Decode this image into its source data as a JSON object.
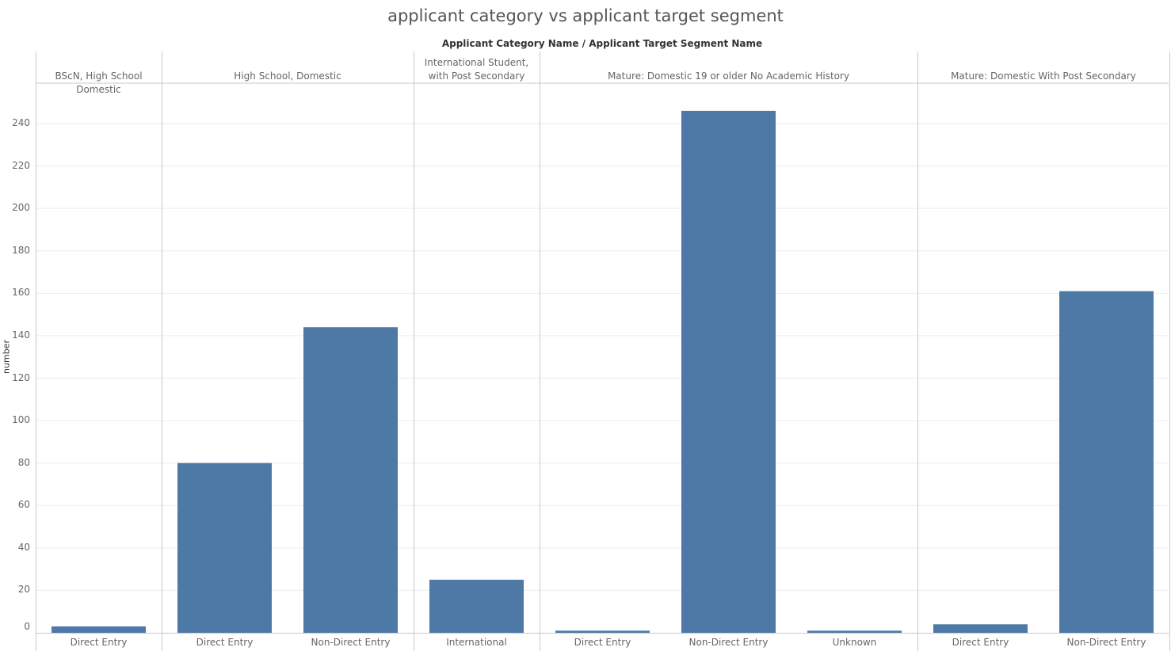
{
  "chart_data": {
    "type": "bar",
    "title": "applicant category vs applicant target segment",
    "column_header": "Applicant Category Name  /  Applicant Target Segment Name",
    "ylabel": "number",
    "ylim": [
      0,
      250
    ],
    "yticks": [
      0,
      20,
      40,
      60,
      80,
      100,
      120,
      140,
      160,
      180,
      200,
      220,
      240
    ],
    "grid": true,
    "bar_color": "#4e79a7",
    "groups": [
      {
        "name": "BScN, High School Domestic",
        "categories": [
          "Direct Entry"
        ],
        "values": [
          3
        ]
      },
      {
        "name": "High School, Domestic",
        "categories": [
          "Direct Entry",
          "Non-Direct Entry"
        ],
        "values": [
          80,
          144
        ]
      },
      {
        "name": "International Student, with Post Secondary",
        "categories": [
          "International"
        ],
        "values": [
          25
        ]
      },
      {
        "name": "Mature: Domestic 19 or older No Academic History",
        "categories": [
          "Direct Entry",
          "Non-Direct Entry",
          "Unknown"
        ],
        "values": [
          1,
          246,
          1
        ]
      },
      {
        "name": "Mature: Domestic  With Post Secondary",
        "categories": [
          "Direct Entry",
          "Non-Direct Entry"
        ],
        "values": [
          4,
          161
        ]
      }
    ]
  }
}
